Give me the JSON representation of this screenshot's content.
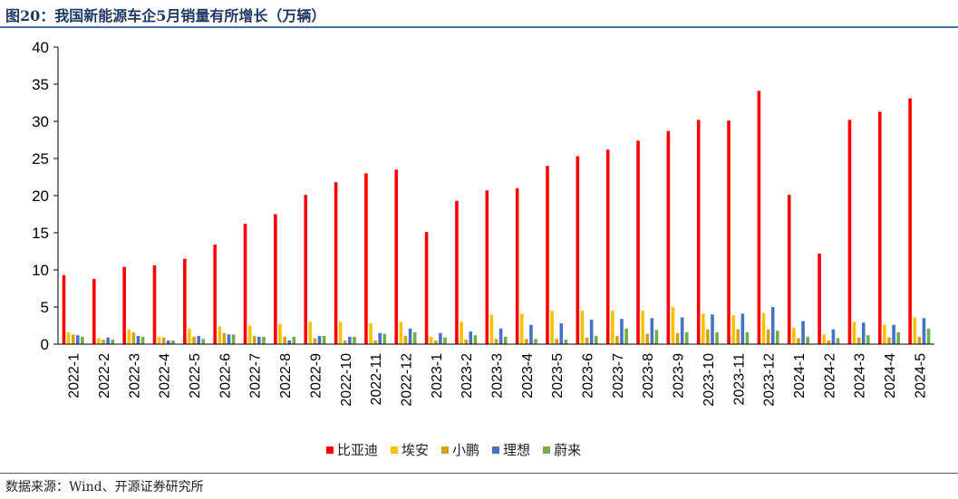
{
  "title": "图20：我国新能源车企5月销量有所增长（万辆）",
  "source": "数据来源：Wind、开源证券研究所",
  "chart_data": {
    "type": "bar",
    "categories": [
      "2022-1",
      "2022-2",
      "2022-3",
      "2022-4",
      "2022-5",
      "2022-6",
      "2022-7",
      "2022-8",
      "2022-9",
      "2022-10",
      "2022-11",
      "2022-12",
      "2023-1",
      "2023-2",
      "2023-3",
      "2023-4",
      "2023-5",
      "2023-6",
      "2023-7",
      "2023-8",
      "2023-9",
      "2023-10",
      "2023-11",
      "2023-12",
      "2024-1",
      "2024-2",
      "2024-3",
      "2024-4",
      "2024-5"
    ],
    "ylim": [
      0,
      40
    ],
    "yticks": [
      0,
      5,
      10,
      15,
      20,
      25,
      30,
      35,
      40
    ],
    "legend_position": "bottom",
    "grid": false,
    "series": [
      {
        "name": "比亚迪",
        "color": "#ff0000",
        "values": [
          9.3,
          8.8,
          10.4,
          10.6,
          11.5,
          13.4,
          16.2,
          17.5,
          20.1,
          21.8,
          23.0,
          23.5,
          15.1,
          19.3,
          20.7,
          21.0,
          24.0,
          25.3,
          26.2,
          27.4,
          28.7,
          30.2,
          30.1,
          34.1,
          20.1,
          12.2,
          30.2,
          31.3,
          33.1
        ]
      },
      {
        "name": "埃安",
        "color": "#ffc000",
        "values": [
          1.6,
          0.8,
          2.0,
          1.0,
          2.1,
          2.4,
          2.5,
          2.7,
          3.0,
          3.0,
          2.8,
          3.0,
          1.0,
          3.0,
          4.0,
          4.1,
          4.5,
          4.5,
          4.5,
          4.5,
          5.0,
          4.1,
          3.9,
          4.2,
          2.2,
          1.3,
          3.0,
          2.6,
          3.6
        ]
      },
      {
        "name": "小鹏",
        "color": "#d4a017",
        "values": [
          1.3,
          0.6,
          1.6,
          0.9,
          1.0,
          1.5,
          1.1,
          1.0,
          0.8,
          0.5,
          0.5,
          1.1,
          0.5,
          0.6,
          0.7,
          0.7,
          0.7,
          0.9,
          1.1,
          1.4,
          1.5,
          2.0,
          2.0,
          2.0,
          0.8,
          0.5,
          0.9,
          0.9,
          1.0
        ]
      },
      {
        "name": "理想",
        "color": "#4472c4",
        "values": [
          1.2,
          0.9,
          1.1,
          0.5,
          1.1,
          1.3,
          1.0,
          0.5,
          1.1,
          1.0,
          1.5,
          2.1,
          1.5,
          1.7,
          2.1,
          2.6,
          2.8,
          3.3,
          3.4,
          3.5,
          3.6,
          4.0,
          4.1,
          5.0,
          3.1,
          2.0,
          2.9,
          2.6,
          3.5
        ]
      },
      {
        "name": "蔚来",
        "color": "#70ad47",
        "values": [
          1.0,
          0.6,
          1.0,
          0.5,
          0.7,
          1.3,
          1.0,
          1.0,
          1.1,
          1.0,
          1.4,
          1.6,
          0.9,
          1.2,
          1.0,
          0.7,
          0.6,
          1.1,
          2.1,
          1.9,
          1.6,
          1.6,
          1.6,
          1.8,
          1.0,
          0.8,
          1.2,
          1.6,
          2.1
        ]
      }
    ]
  }
}
